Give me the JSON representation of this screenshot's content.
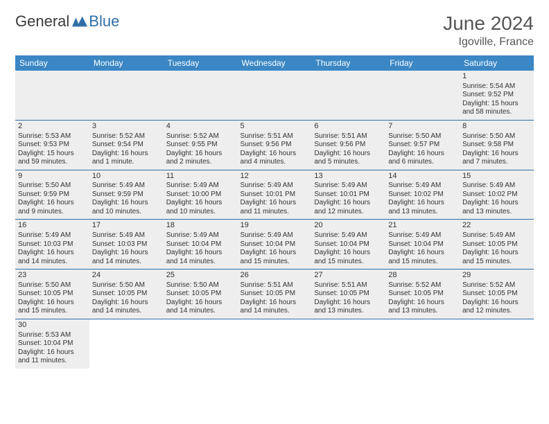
{
  "logo": {
    "part1": "General",
    "part2": "Blue"
  },
  "title": "June 2024",
  "location": "Igoville, France",
  "colors": {
    "header_bg": "#3b86c4",
    "header_text": "#ffffff",
    "row_border": "#2f6fa8",
    "shaded_bg": "#eeeeee",
    "logo_blue": "#2f6fa8"
  },
  "weekdays": [
    "Sunday",
    "Monday",
    "Tuesday",
    "Wednesday",
    "Thursday",
    "Friday",
    "Saturday"
  ],
  "weeks": [
    [
      null,
      null,
      null,
      null,
      null,
      null,
      {
        "d": "1",
        "sr": "Sunrise: 5:54 AM",
        "ss": "Sunset: 9:52 PM",
        "dl": "Daylight: 15 hours and 58 minutes."
      }
    ],
    [
      {
        "d": "2",
        "sr": "Sunrise: 5:53 AM",
        "ss": "Sunset: 9:53 PM",
        "dl": "Daylight: 15 hours and 59 minutes."
      },
      {
        "d": "3",
        "sr": "Sunrise: 5:52 AM",
        "ss": "Sunset: 9:54 PM",
        "dl": "Daylight: 16 hours and 1 minute."
      },
      {
        "d": "4",
        "sr": "Sunrise: 5:52 AM",
        "ss": "Sunset: 9:55 PM",
        "dl": "Daylight: 16 hours and 2 minutes."
      },
      {
        "d": "5",
        "sr": "Sunrise: 5:51 AM",
        "ss": "Sunset: 9:56 PM",
        "dl": "Daylight: 16 hours and 4 minutes."
      },
      {
        "d": "6",
        "sr": "Sunrise: 5:51 AM",
        "ss": "Sunset: 9:56 PM",
        "dl": "Daylight: 16 hours and 5 minutes."
      },
      {
        "d": "7",
        "sr": "Sunrise: 5:50 AM",
        "ss": "Sunset: 9:57 PM",
        "dl": "Daylight: 16 hours and 6 minutes."
      },
      {
        "d": "8",
        "sr": "Sunrise: 5:50 AM",
        "ss": "Sunset: 9:58 PM",
        "dl": "Daylight: 16 hours and 7 minutes."
      }
    ],
    [
      {
        "d": "9",
        "sr": "Sunrise: 5:50 AM",
        "ss": "Sunset: 9:59 PM",
        "dl": "Daylight: 16 hours and 9 minutes."
      },
      {
        "d": "10",
        "sr": "Sunrise: 5:49 AM",
        "ss": "Sunset: 9:59 PM",
        "dl": "Daylight: 16 hours and 10 minutes."
      },
      {
        "d": "11",
        "sr": "Sunrise: 5:49 AM",
        "ss": "Sunset: 10:00 PM",
        "dl": "Daylight: 16 hours and 10 minutes."
      },
      {
        "d": "12",
        "sr": "Sunrise: 5:49 AM",
        "ss": "Sunset: 10:01 PM",
        "dl": "Daylight: 16 hours and 11 minutes."
      },
      {
        "d": "13",
        "sr": "Sunrise: 5:49 AM",
        "ss": "Sunset: 10:01 PM",
        "dl": "Daylight: 16 hours and 12 minutes."
      },
      {
        "d": "14",
        "sr": "Sunrise: 5:49 AM",
        "ss": "Sunset: 10:02 PM",
        "dl": "Daylight: 16 hours and 13 minutes."
      },
      {
        "d": "15",
        "sr": "Sunrise: 5:49 AM",
        "ss": "Sunset: 10:02 PM",
        "dl": "Daylight: 16 hours and 13 minutes."
      }
    ],
    [
      {
        "d": "16",
        "sr": "Sunrise: 5:49 AM",
        "ss": "Sunset: 10:03 PM",
        "dl": "Daylight: 16 hours and 14 minutes."
      },
      {
        "d": "17",
        "sr": "Sunrise: 5:49 AM",
        "ss": "Sunset: 10:03 PM",
        "dl": "Daylight: 16 hours and 14 minutes."
      },
      {
        "d": "18",
        "sr": "Sunrise: 5:49 AM",
        "ss": "Sunset: 10:04 PM",
        "dl": "Daylight: 16 hours and 14 minutes."
      },
      {
        "d": "19",
        "sr": "Sunrise: 5:49 AM",
        "ss": "Sunset: 10:04 PM",
        "dl": "Daylight: 16 hours and 15 minutes."
      },
      {
        "d": "20",
        "sr": "Sunrise: 5:49 AM",
        "ss": "Sunset: 10:04 PM",
        "dl": "Daylight: 16 hours and 15 minutes."
      },
      {
        "d": "21",
        "sr": "Sunrise: 5:49 AM",
        "ss": "Sunset: 10:04 PM",
        "dl": "Daylight: 16 hours and 15 minutes."
      },
      {
        "d": "22",
        "sr": "Sunrise: 5:49 AM",
        "ss": "Sunset: 10:05 PM",
        "dl": "Daylight: 16 hours and 15 minutes."
      }
    ],
    [
      {
        "d": "23",
        "sr": "Sunrise: 5:50 AM",
        "ss": "Sunset: 10:05 PM",
        "dl": "Daylight: 16 hours and 15 minutes."
      },
      {
        "d": "24",
        "sr": "Sunrise: 5:50 AM",
        "ss": "Sunset: 10:05 PM",
        "dl": "Daylight: 16 hours and 14 minutes."
      },
      {
        "d": "25",
        "sr": "Sunrise: 5:50 AM",
        "ss": "Sunset: 10:05 PM",
        "dl": "Daylight: 16 hours and 14 minutes."
      },
      {
        "d": "26",
        "sr": "Sunrise: 5:51 AM",
        "ss": "Sunset: 10:05 PM",
        "dl": "Daylight: 16 hours and 14 minutes."
      },
      {
        "d": "27",
        "sr": "Sunrise: 5:51 AM",
        "ss": "Sunset: 10:05 PM",
        "dl": "Daylight: 16 hours and 13 minutes."
      },
      {
        "d": "28",
        "sr": "Sunrise: 5:52 AM",
        "ss": "Sunset: 10:05 PM",
        "dl": "Daylight: 16 hours and 13 minutes."
      },
      {
        "d": "29",
        "sr": "Sunrise: 5:52 AM",
        "ss": "Sunset: 10:05 PM",
        "dl": "Daylight: 16 hours and 12 minutes."
      }
    ],
    [
      {
        "d": "30",
        "sr": "Sunrise: 5:53 AM",
        "ss": "Sunset: 10:04 PM",
        "dl": "Daylight: 16 hours and 11 minutes."
      },
      null,
      null,
      null,
      null,
      null,
      null
    ]
  ]
}
